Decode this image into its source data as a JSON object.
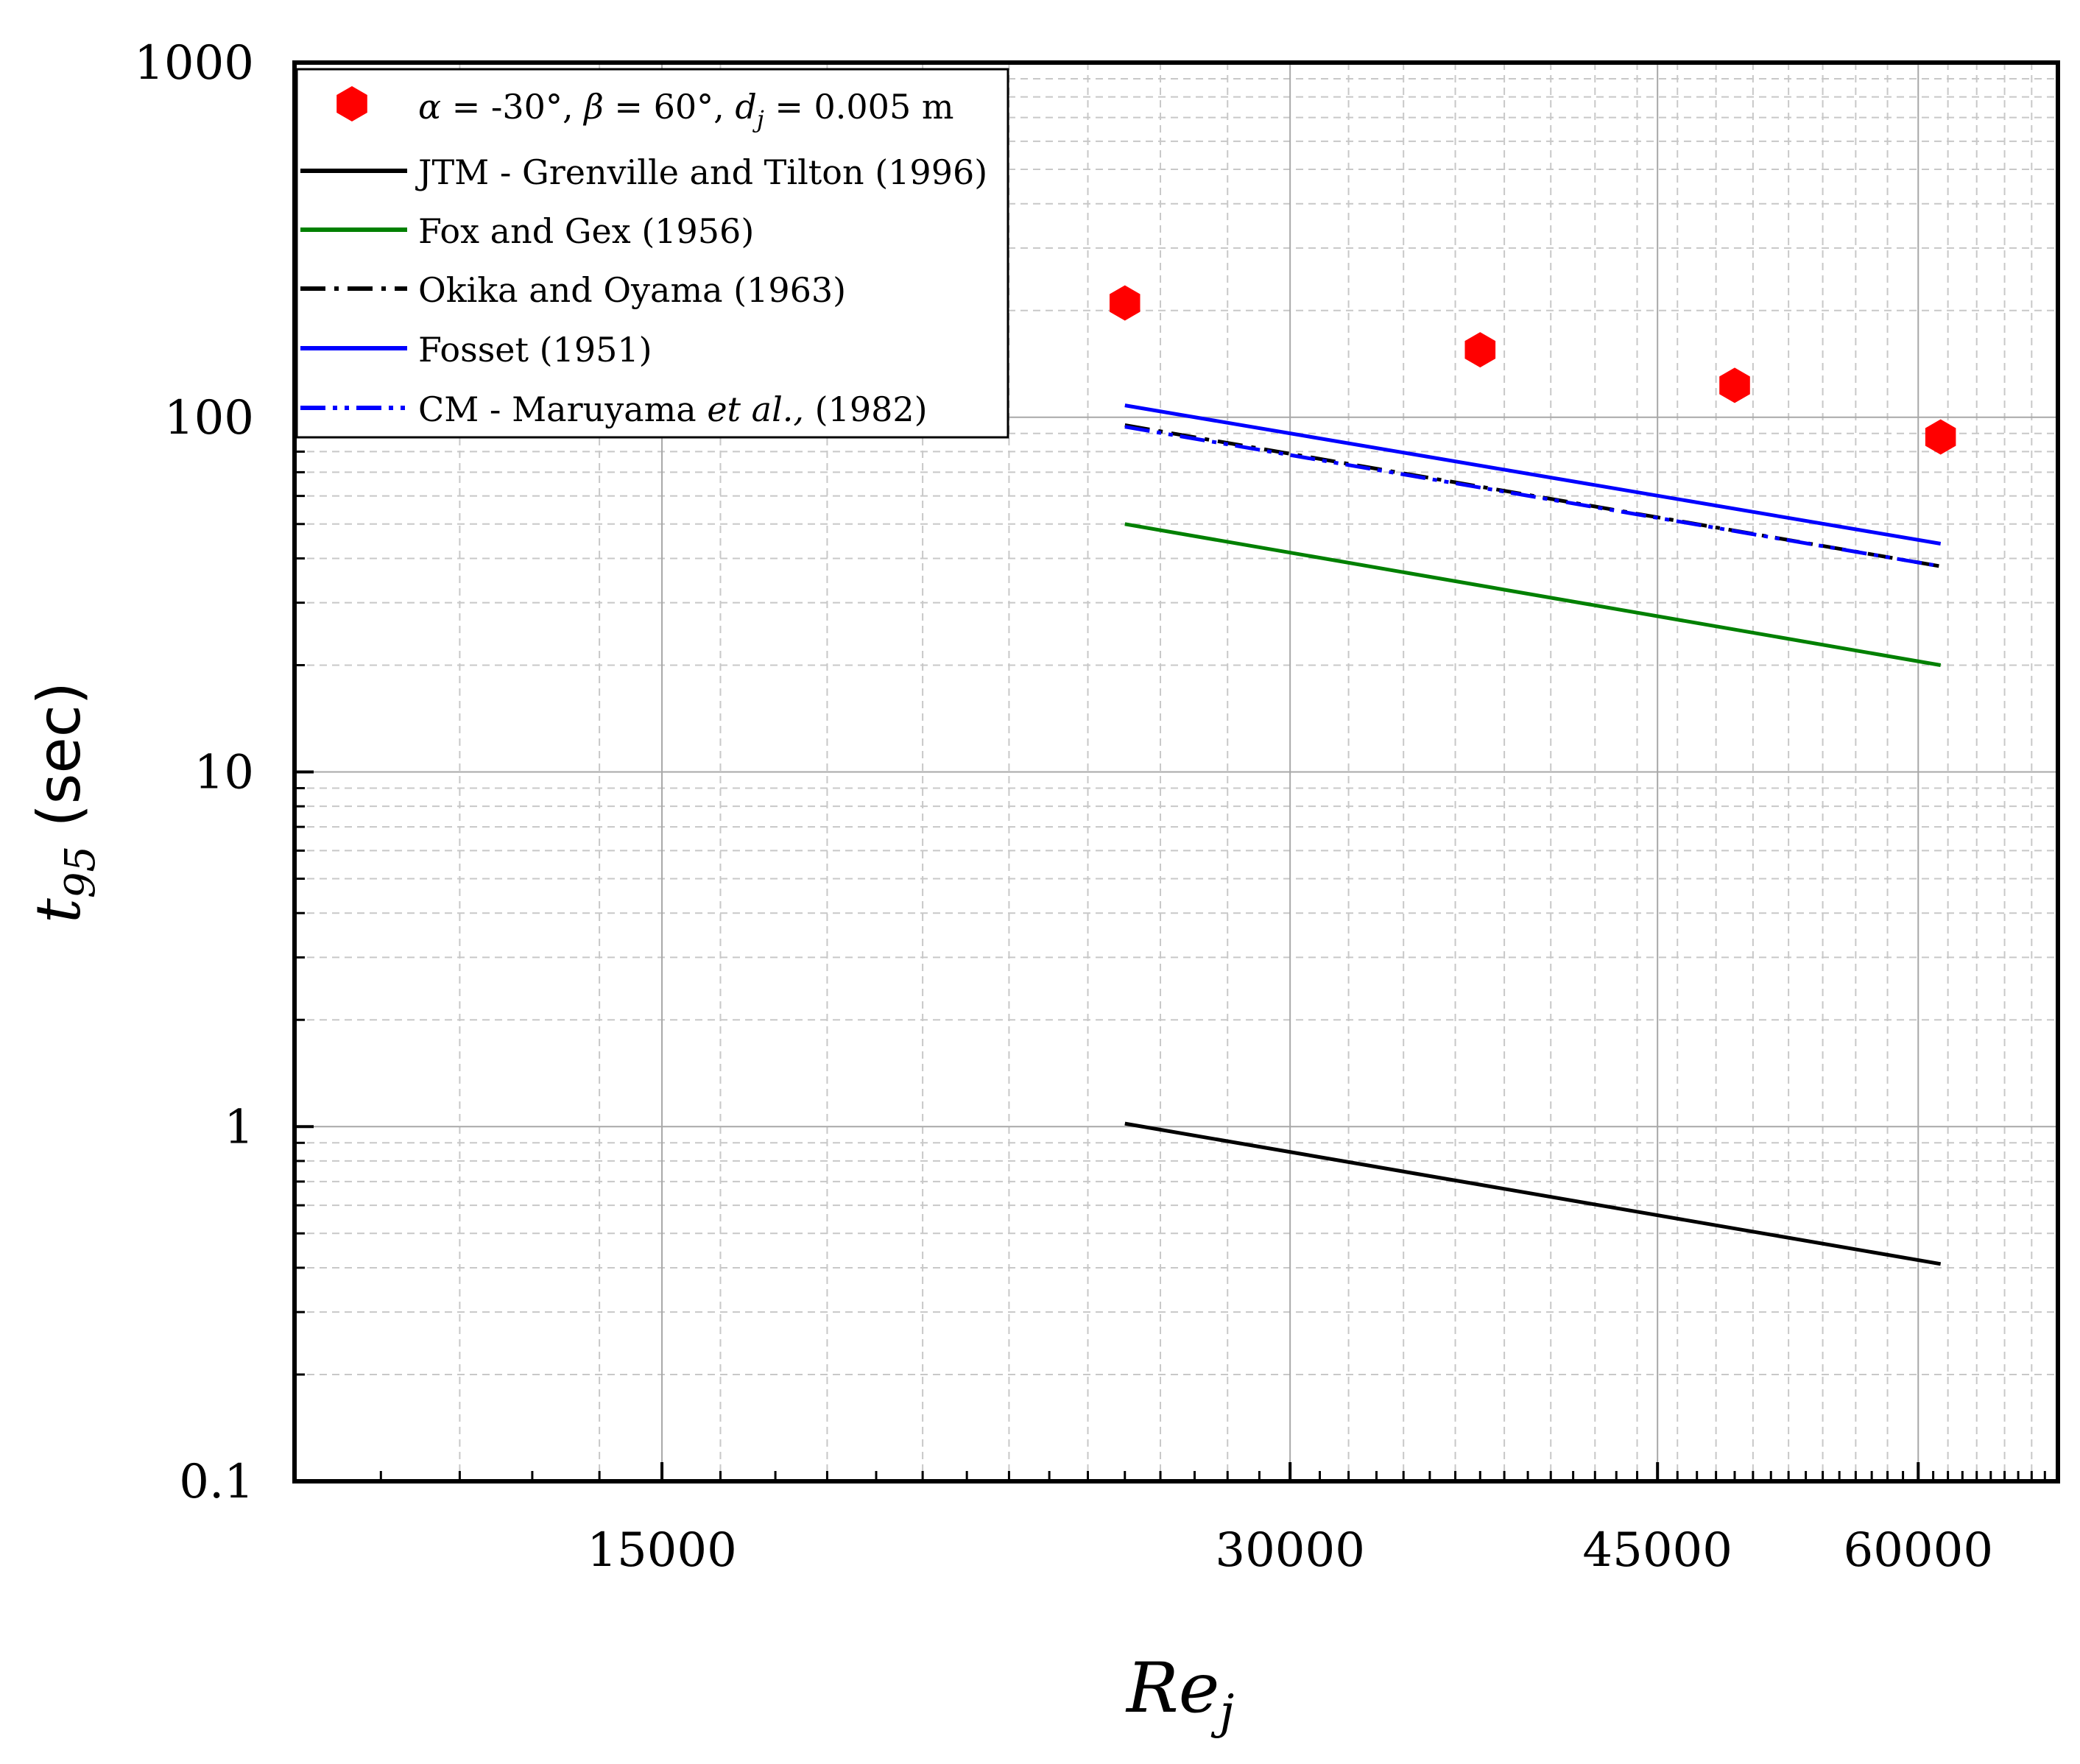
{
  "chart_data": {
    "type": "line",
    "xscale": "log",
    "yscale": "log",
    "xlim": [
      10000,
      70000
    ],
    "ylim": [
      0.1,
      1000
    ],
    "xticks": [
      15000,
      30000,
      45000,
      60000
    ],
    "xtick_labels": [
      "15000",
      "30000",
      "45000",
      "60000"
    ],
    "yticks": [
      0.1,
      1,
      10,
      100,
      1000
    ],
    "ytick_labels": [
      "0.1",
      "1",
      "10",
      "100",
      "1000"
    ],
    "xlabel": {
      "main": "Re",
      "sub": "j"
    },
    "ylabel": {
      "main": "t",
      "sub": "95",
      "suffix": " (sec)"
    },
    "grid": true,
    "legend_position": "top-left",
    "series": [
      {
        "name": "α = -30°, β = 60°, dj = 0.005 m",
        "label_parts": {
          "alpha": "α",
          "alpha_val": " = -30°, ",
          "beta": "β",
          "beta_val": " = 60°, ",
          "d": "d",
          "d_sub": "j",
          "d_val": " = 0.005 m"
        },
        "kind": "marker",
        "marker": "hexagon",
        "color": "#ff0000",
        "x": [
          25000,
          37000,
          49000,
          61500
        ],
        "y": [
          210,
          155,
          123,
          88
        ]
      },
      {
        "name": "JTM - Grenville and Tilton (1996)",
        "kind": "line",
        "style": "solid",
        "color": "#000000",
        "x": [
          25000,
          61500
        ],
        "y": [
          1.02,
          0.41
        ]
      },
      {
        "name": "Fox and Gex (1956)",
        "kind": "line",
        "style": "solid",
        "color": "#008000",
        "x": [
          25000,
          61500
        ],
        "y": [
          50,
          20
        ]
      },
      {
        "name": "Okika and Oyama (1963)",
        "kind": "line",
        "style": "dashdot",
        "color": "#000000",
        "x": [
          25000,
          61500
        ],
        "y": [
          95,
          38
        ]
      },
      {
        "name": "Fosset (1951)",
        "kind": "line",
        "style": "solid",
        "color": "#0000ff",
        "x": [
          25000,
          61500
        ],
        "y": [
          108,
          44
        ]
      },
      {
        "name": "CM - Maruyama et al., (1982)",
        "label_parts": {
          "pre": "CM - Maruyama ",
          "ital": "et al.,",
          "post": " (1982)"
        },
        "kind": "line",
        "style": "dashdotdot",
        "color": "#0000ff",
        "x": [
          25000,
          61500
        ],
        "y": [
          94,
          38
        ]
      }
    ]
  }
}
